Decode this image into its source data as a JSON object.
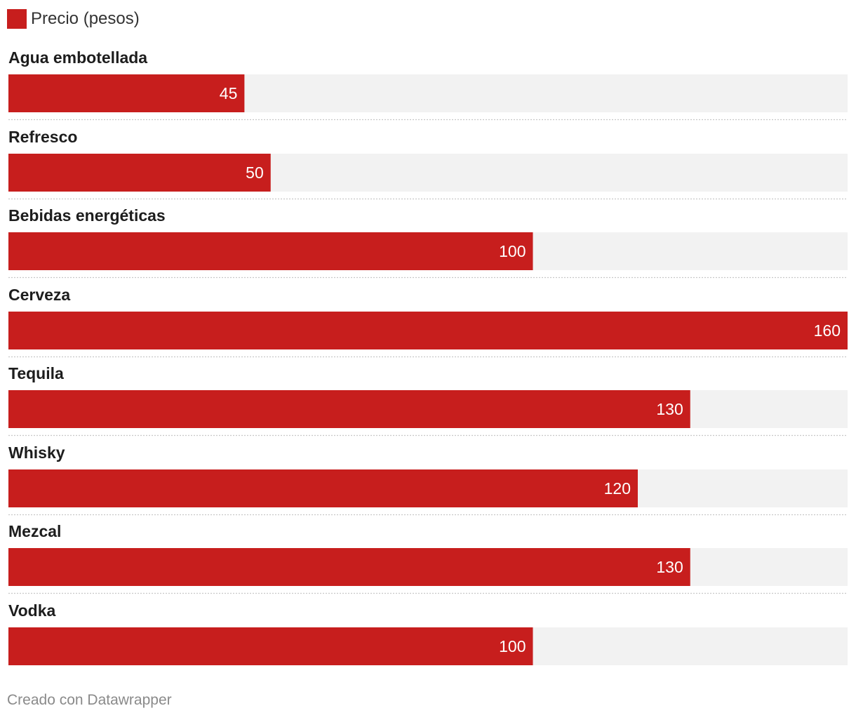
{
  "chart_data": {
    "type": "bar",
    "orientation": "horizontal",
    "legend": [
      {
        "name": "Precio (pesos)",
        "color": "#c71e1d"
      }
    ],
    "categories": [
      "Agua embotellada",
      "Refresco",
      "Bebidas energéticas",
      "Cerveza",
      "Tequila",
      "Whisky",
      "Mezcal",
      "Vodka"
    ],
    "series": [
      {
        "name": "Precio (pesos)",
        "values": [
          45,
          50,
          100,
          160,
          130,
          120,
          130,
          100
        ]
      }
    ],
    "xlim": [
      0,
      160
    ],
    "value_labels": [
      "45",
      "50",
      "100",
      "160",
      "130",
      "120",
      "130",
      "100"
    ]
  },
  "colors": {
    "bar": "#c71e1d",
    "track": "#f2f2f2",
    "separator": "#c8c8c8",
    "value_text": "#ffffff"
  },
  "footer": {
    "credit": "Creado con Datawrapper"
  }
}
